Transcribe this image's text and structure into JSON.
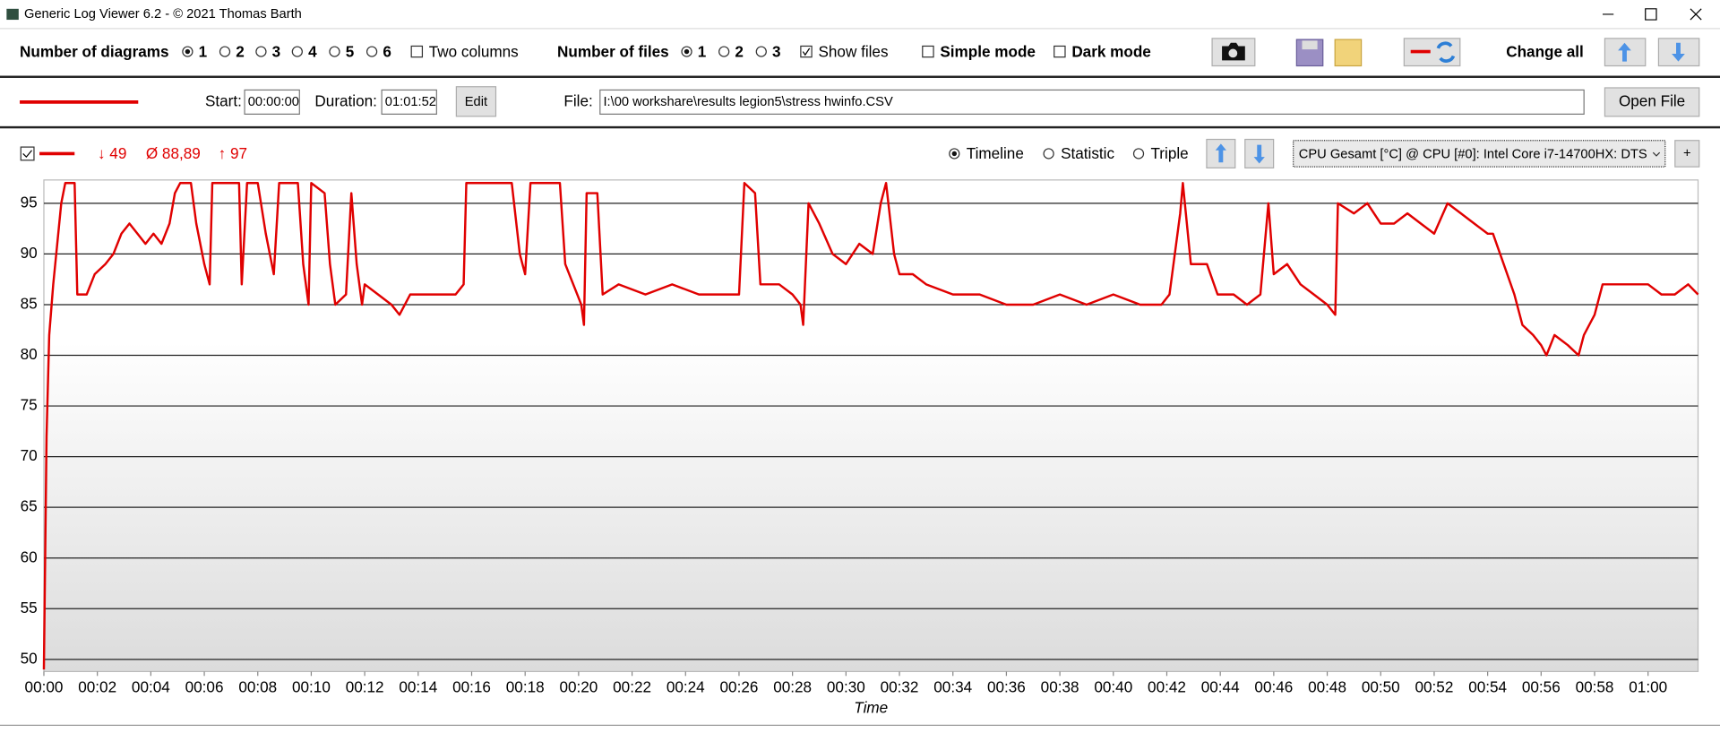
{
  "window": {
    "title": "Generic Log Viewer 6.2 - © 2021 Thomas Barth"
  },
  "toolbar": {
    "diagrams_label": "Number of diagrams",
    "diagram_options": [
      "1",
      "2",
      "3",
      "4",
      "5",
      "6"
    ],
    "diagrams_selected": 0,
    "two_columns": "Two columns",
    "two_columns_checked": false,
    "files_label": "Number of files",
    "file_options": [
      "1",
      "2",
      "3"
    ],
    "files_selected": 0,
    "show_files": "Show files",
    "show_files_checked": true,
    "simple_mode": "Simple mode",
    "simple_mode_checked": false,
    "dark_mode": "Dark mode",
    "dark_mode_checked": false,
    "change_all": "Change all"
  },
  "file_bar": {
    "start_label": "Start:",
    "start": "00:00:00",
    "duration_label": "Duration:",
    "duration": "01:01:52",
    "edit": "Edit",
    "file_label": "File:",
    "file": "I:\\00 workshare\\results legion5\\stress hwinfo.CSV",
    "open_file": "Open File"
  },
  "chart_header": {
    "min": "↓ 49",
    "avg": "Ø 88,89",
    "max": "↑ 97",
    "modes": [
      "Timeline",
      "Statistic",
      "Triple"
    ],
    "mode_selected": 0,
    "channel": "CPU Gesamt [°C] @ CPU [#0]: Intel Core i7-14700HX: DTS",
    "add": "+"
  },
  "chart_data": {
    "type": "line",
    "color": "#e00000",
    "x_label": "Time",
    "grid": true,
    "xlim": [
      0,
      61.87
    ],
    "ylim": [
      48.8,
      97.3
    ],
    "yticks": [
      50,
      55,
      60,
      65,
      70,
      75,
      80,
      85,
      90,
      95
    ],
    "xticks": [
      {
        "value": 0,
        "label": "00:00"
      },
      {
        "value": 2,
        "label": "00:02"
      },
      {
        "value": 4,
        "label": "00:04"
      },
      {
        "value": 6,
        "label": "00:06"
      },
      {
        "value": 8,
        "label": "00:08"
      },
      {
        "value": 10,
        "label": "00:10"
      },
      {
        "value": 12,
        "label": "00:12"
      },
      {
        "value": 14,
        "label": "00:14"
      },
      {
        "value": 16,
        "label": "00:16"
      },
      {
        "value": 18,
        "label": "00:18"
      },
      {
        "value": 20,
        "label": "00:20"
      },
      {
        "value": 22,
        "label": "00:22"
      },
      {
        "value": 24,
        "label": "00:24"
      },
      {
        "value": 26,
        "label": "00:26"
      },
      {
        "value": 28,
        "label": "00:28"
      },
      {
        "value": 30,
        "label": "00:30"
      },
      {
        "value": 32,
        "label": "00:32"
      },
      {
        "value": 34,
        "label": "00:34"
      },
      {
        "value": 36,
        "label": "00:36"
      },
      {
        "value": 38,
        "label": "00:38"
      },
      {
        "value": 40,
        "label": "00:40"
      },
      {
        "value": 42,
        "label": "00:42"
      },
      {
        "value": 44,
        "label": "00:44"
      },
      {
        "value": 46,
        "label": "00:46"
      },
      {
        "value": 48,
        "label": "00:48"
      },
      {
        "value": 50,
        "label": "00:50"
      },
      {
        "value": 52,
        "label": "00:52"
      },
      {
        "value": 54,
        "label": "00:54"
      },
      {
        "value": 56,
        "label": "00:56"
      },
      {
        "value": 58,
        "label": "00:58"
      },
      {
        "value": 60,
        "label": "01:00"
      }
    ],
    "x": [
      0,
      0.1,
      0.2,
      0.35,
      0.5,
      0.65,
      0.8,
      1.15,
      1.25,
      1.6,
      1.9,
      2.3,
      2.6,
      2.9,
      3.2,
      3.5,
      3.8,
      4.1,
      4.4,
      4.7,
      4.9,
      5.1,
      5.5,
      5.7,
      6.0,
      6.2,
      6.3,
      7.3,
      7.4,
      7.6,
      8.0,
      8.3,
      8.6,
      8.8,
      9.5,
      9.7,
      9.9,
      10.0,
      10.5,
      10.7,
      10.9,
      11.3,
      11.5,
      11.7,
      11.9,
      12.0,
      12.5,
      13.0,
      13.3,
      13.7,
      14.2,
      14.8,
      15.4,
      15.7,
      15.8,
      16.2,
      17.0,
      17.5,
      17.8,
      18.0,
      18.2,
      19.0,
      19.3,
      19.5,
      19.8,
      20.1,
      20.2,
      20.3,
      20.7,
      20.9,
      21.5,
      22.5,
      23.5,
      24.5,
      25.5,
      26.0,
      26.2,
      26.6,
      26.8,
      27.5,
      28.0,
      28.3,
      28.4,
      28.6,
      29.0,
      29.5,
      30.0,
      30.5,
      31.0,
      31.3,
      31.5,
      31.8,
      32.0,
      32.5,
      33.0,
      34.0,
      35.0,
      36.0,
      37.0,
      38.0,
      39.0,
      40.0,
      41.0,
      41.8,
      42.1,
      42.5,
      42.6,
      42.9,
      43.5,
      43.9,
      44.5,
      45.0,
      45.5,
      45.8,
      46.0,
      46.5,
      47.0,
      47.5,
      48.0,
      48.3,
      48.4,
      49.0,
      49.5,
      50.0,
      50.5,
      51.0,
      51.5,
      52.0,
      52.5,
      53.0,
      53.5,
      54.0,
      54.2,
      54.6,
      55.0,
      55.3,
      55.7,
      56.0,
      56.2,
      56.5,
      57.0,
      57.4,
      57.6,
      58.0,
      58.3,
      58.5,
      59.0,
      60.0,
      60.5,
      61.0,
      61.5,
      61.87
    ],
    "values": [
      49,
      72,
      82,
      87,
      91,
      95,
      97,
      97,
      86,
      86,
      88,
      89,
      90,
      92,
      93,
      92,
      91,
      92,
      91,
      93,
      96,
      97,
      97,
      93,
      89,
      87,
      97,
      97,
      87,
      97,
      97,
      92,
      88,
      97,
      97,
      89,
      85,
      97,
      96,
      89,
      85,
      86,
      96,
      89,
      85,
      87,
      86,
      85,
      84,
      86,
      86,
      86,
      86,
      87,
      97,
      97,
      97,
      97,
      90,
      88,
      97,
      97,
      97,
      89,
      87,
      85,
      83,
      96,
      96,
      86,
      87,
      86,
      87,
      86,
      86,
      86,
      97,
      96,
      87,
      87,
      86,
      85,
      83,
      95,
      93,
      90,
      89,
      91,
      90,
      95,
      97,
      90,
      88,
      88,
      87,
      86,
      86,
      85,
      85,
      86,
      85,
      86,
      85,
      85,
      86,
      94,
      97,
      89,
      89,
      86,
      86,
      85,
      86,
      95,
      88,
      89,
      87,
      86,
      85,
      84,
      95,
      94,
      95,
      93,
      93,
      94,
      93,
      92,
      95,
      94,
      93,
      92,
      92,
      89,
      86,
      83,
      82,
      81,
      80,
      82,
      81,
      80,
      82,
      84,
      87,
      87,
      87,
      87,
      86,
      86,
      87,
      86
    ]
  }
}
